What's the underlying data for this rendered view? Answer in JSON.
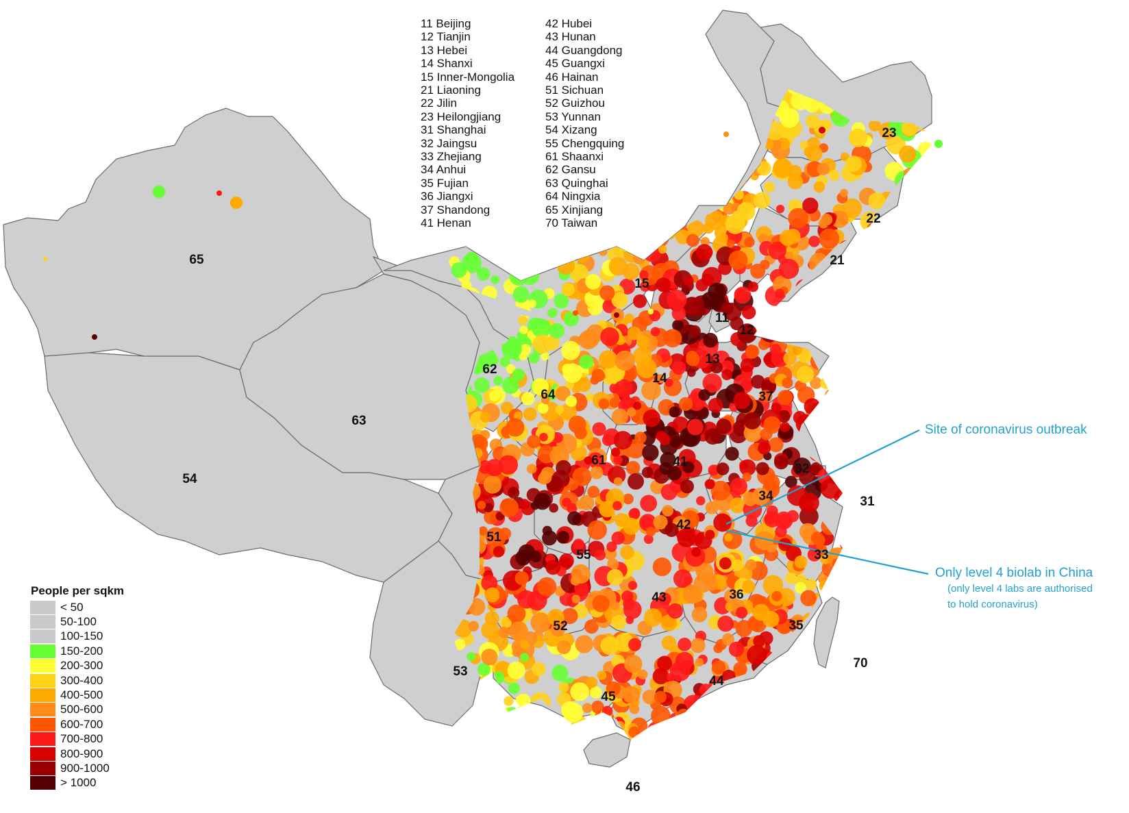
{
  "province_key": {
    "col1": [
      "11 Beijing",
      "12 Tianjin",
      "13 Hebei",
      "14 Shanxi",
      "15 Inner-Mongolia",
      "21 Liaoning",
      "22 Jilin",
      "23 Heilongjiang",
      "31 Shanghai",
      "32 Jaingsu",
      "33 Zhejiang",
      "34 Anhui",
      "35 Fujian",
      "36 Jiangxi",
      "37 Shandong",
      "41 Henan"
    ],
    "col2": [
      "42 Hubei",
      "43 Hunan",
      "44 Guangdong",
      "45 Guangxi",
      "46 Hainan",
      "51 Sichuan",
      "52 Guizhou",
      "53 Yunnan",
      "54 Xizang",
      "55 Chengquing",
      "61 Shaanxi",
      "62 Gansu",
      "63 Quinghai",
      "64 Ningxia",
      "65 Xinjiang",
      "70 Taiwan"
    ]
  },
  "map_labels": [
    {
      "id": "65",
      "code": "65"
    },
    {
      "id": "54",
      "code": "54"
    },
    {
      "id": "63",
      "code": "63"
    },
    {
      "id": "62",
      "code": "62"
    },
    {
      "id": "64",
      "code": "64"
    },
    {
      "id": "15",
      "code": "15"
    },
    {
      "id": "23",
      "code": "23"
    },
    {
      "id": "22",
      "code": "22"
    },
    {
      "id": "21",
      "code": "21"
    },
    {
      "id": "11",
      "code": "11"
    },
    {
      "id": "12",
      "code": "12"
    },
    {
      "id": "13",
      "code": "13"
    },
    {
      "id": "14",
      "code": "14"
    },
    {
      "id": "37",
      "code": "37"
    },
    {
      "id": "61",
      "code": "61"
    },
    {
      "id": "41",
      "code": "41"
    },
    {
      "id": "32",
      "code": "32"
    },
    {
      "id": "34",
      "code": "34"
    },
    {
      "id": "31",
      "code": "31"
    },
    {
      "id": "42",
      "code": "42"
    },
    {
      "id": "51",
      "code": "51"
    },
    {
      "id": "55",
      "code": "55"
    },
    {
      "id": "33",
      "code": "33"
    },
    {
      "id": "43",
      "code": "43"
    },
    {
      "id": "36",
      "code": "36"
    },
    {
      "id": "52",
      "code": "52"
    },
    {
      "id": "35",
      "code": "35"
    },
    {
      "id": "53",
      "code": "53"
    },
    {
      "id": "45",
      "code": "45"
    },
    {
      "id": "44",
      "code": "44"
    },
    {
      "id": "70",
      "code": "70"
    },
    {
      "id": "46",
      "code": "46"
    }
  ],
  "legend": {
    "title": "People per sqkm",
    "items": [
      {
        "label": "< 50",
        "color": "#c9c9c9"
      },
      {
        "label": "50-100",
        "color": "#c9c9c9"
      },
      {
        "label": "100-150",
        "color": "#c9c9c9"
      },
      {
        "label": "150-200",
        "color": "#66ff33"
      },
      {
        "label": "200-300",
        "color": "#ffff33"
      },
      {
        "label": "300-400",
        "color": "#ffd21a"
      },
      {
        "label": "400-500",
        "color": "#ffaa00"
      },
      {
        "label": "500-600",
        "color": "#ff8c1a"
      },
      {
        "label": "600-700",
        "color": "#ff5500"
      },
      {
        "label": "700-800",
        "color": "#ff1a1a"
      },
      {
        "label": "800-900",
        "color": "#d90000"
      },
      {
        "label": "900-1000",
        "color": "#990000"
      },
      {
        "label": "> 1000",
        "color": "#550000"
      }
    ]
  },
  "annotations": {
    "outbreak": "Site of coronavirus outbreak",
    "biolab": "Only level 4 biolab in China",
    "biolab_note_1": "(only level 4 labs are authorised",
    "biolab_note_2": "to hold coronavirus)",
    "color": "#22a0cf"
  },
  "colors": {
    "base": "#cfcfcf",
    "border": "#6a6a6a",
    "density_classes": [
      "#66ff33",
      "#ffff33",
      "#ffd21a",
      "#ffaa00",
      "#ff8c1a",
      "#ff5500",
      "#ff1a1a",
      "#d90000",
      "#990000",
      "#550000"
    ]
  }
}
